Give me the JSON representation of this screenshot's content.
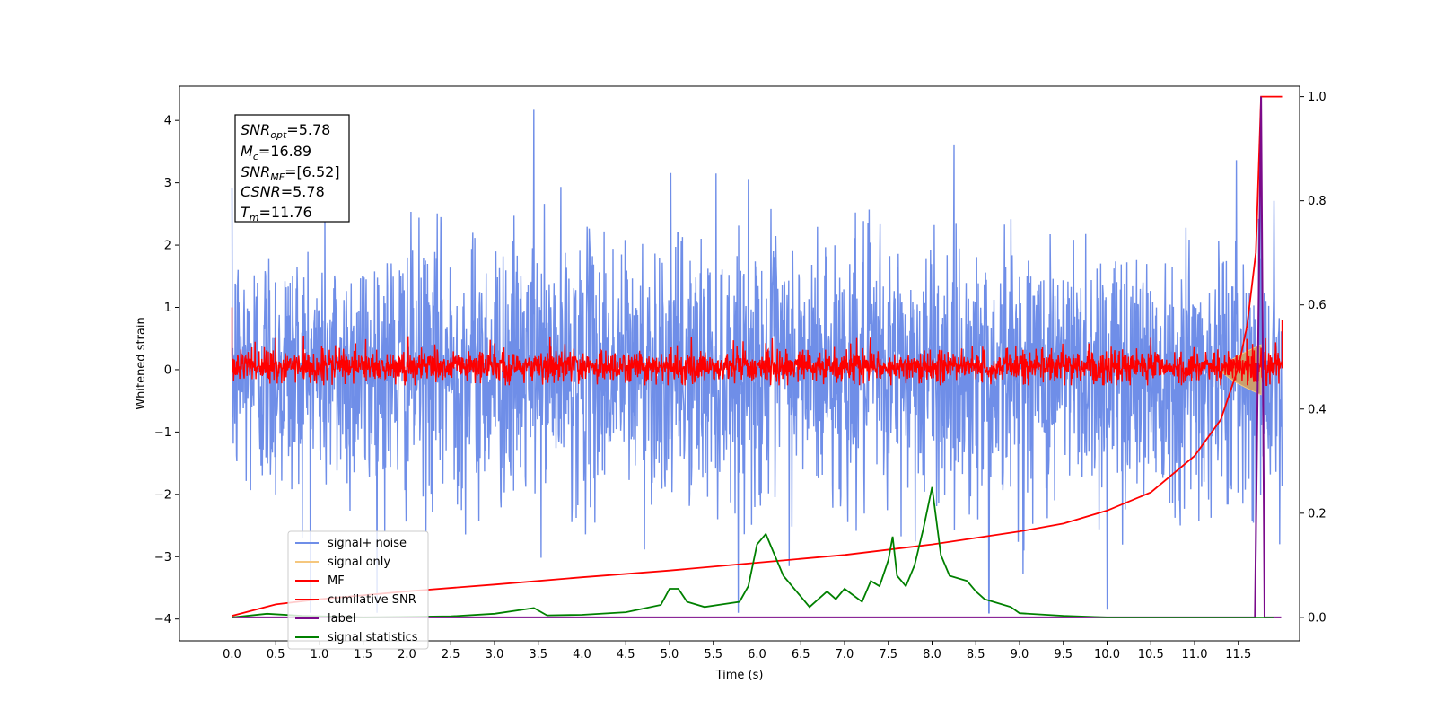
{
  "chart_data": {
    "type": "line",
    "xlabel": "Time (s)",
    "ylabel": "Whitened strain",
    "xlim": [
      -0.6,
      12.2
    ],
    "ylim": [
      -4.35,
      4.55
    ],
    "y2lim": [
      -0.045,
      1.02
    ],
    "x_ticks": [
      "0.0",
      "0.5",
      "1.0",
      "1.5",
      "2.0",
      "2.5",
      "3.0",
      "3.5",
      "4.0",
      "4.5",
      "5.0",
      "5.5",
      "6.0",
      "6.5",
      "7.0",
      "7.5",
      "8.0",
      "8.5",
      "9.0",
      "9.5",
      "10.0",
      "10.5",
      "11.0",
      "11.5"
    ],
    "y_ticks": [
      -4,
      -3,
      -2,
      -1,
      0,
      1,
      2,
      3,
      4
    ],
    "y2_ticks": [
      "0.0",
      "0.2",
      "0.4",
      "0.6",
      "0.8",
      "1.0"
    ],
    "colors": {
      "signal_noise": "#6f8ee8",
      "signal_only": "#f5c77e",
      "mf": "#ff0000",
      "cumulative_snr": "#ff0000",
      "label": "#7b0a8a",
      "signal_statistics": "#008000",
      "chirp_fill": "#c9a070"
    },
    "annotation": {
      "snr_opt": "=5.78",
      "mc": "=16.89",
      "snr_mf": "=[6.52]",
      "csnr": "=5.78",
      "tm": "=11.76"
    },
    "legend": {
      "position": "lower-left",
      "entries": [
        "signal+ noise",
        "signal only",
        "MF",
        "cumilative SNR",
        "label",
        "signal statistics"
      ]
    },
    "series": [
      {
        "name": "signal+ noise",
        "axis": "left",
        "style": "noise",
        "x_range": [
          0,
          12
        ],
        "approx_range": [
          -3.9,
          4.2
        ],
        "peak_values": [
          [
            3.45,
            4.17
          ],
          [
            11.76,
            4.17
          ],
          [
            8.65,
            -3.95
          ],
          [
            10.0,
            -3.85
          ]
        ]
      },
      {
        "name": "signal only",
        "axis": "left",
        "style": "chirp",
        "x_range": [
          11.3,
          11.76
        ],
        "approx_amplitude": 0.4
      },
      {
        "name": "MF",
        "axis": "left",
        "style": "noise",
        "x_range": [
          0,
          12
        ],
        "approx_range": [
          -0.25,
          0.55
        ],
        "start_value": 1.0,
        "end_value": 0.8
      },
      {
        "name": "cumilative SNR",
        "axis": "right",
        "x": [
          0.0,
          0.5,
          1.0,
          2.0,
          3.0,
          4.0,
          5.0,
          6.0,
          7.0,
          8.0,
          9.0,
          9.5,
          10.0,
          10.5,
          11.0,
          11.3,
          11.5,
          11.6,
          11.7,
          11.76,
          12.0
        ],
        "values": [
          0.003,
          0.025,
          0.035,
          0.05,
          0.063,
          0.077,
          0.09,
          0.105,
          0.12,
          0.14,
          0.165,
          0.18,
          0.205,
          0.24,
          0.31,
          0.38,
          0.48,
          0.56,
          0.7,
          1.0,
          1.0
        ]
      },
      {
        "name": "label",
        "axis": "right",
        "x": [
          0.0,
          11.68,
          11.69,
          11.76,
          11.8,
          11.81,
          11.99
        ],
        "values": [
          0.0,
          0.0,
          0.0,
          1.0,
          0.0,
          0.0,
          0.0
        ]
      },
      {
        "name": "signal statistics",
        "axis": "right",
        "x": [
          0.0,
          0.4,
          0.8,
          1.5,
          2.5,
          3.0,
          3.45,
          3.6,
          4.0,
          4.5,
          4.9,
          5.0,
          5.1,
          5.2,
          5.4,
          5.6,
          5.8,
          5.9,
          6.0,
          6.1,
          6.3,
          6.5,
          6.6,
          6.8,
          6.9,
          7.0,
          7.2,
          7.3,
          7.4,
          7.5,
          7.55,
          7.6,
          7.7,
          7.8,
          7.9,
          8.0,
          8.1,
          8.2,
          8.4,
          8.5,
          8.6,
          8.7,
          8.9,
          9.0,
          9.5,
          10.0,
          11.0,
          11.9
        ],
        "values": [
          0.0,
          0.007,
          0.003,
          0.0,
          0.002,
          0.007,
          0.018,
          0.004,
          0.005,
          0.01,
          0.024,
          0.055,
          0.055,
          0.03,
          0.02,
          0.025,
          0.03,
          0.06,
          0.14,
          0.16,
          0.08,
          0.04,
          0.02,
          0.05,
          0.035,
          0.055,
          0.03,
          0.07,
          0.06,
          0.11,
          0.155,
          0.08,
          0.06,
          0.1,
          0.17,
          0.25,
          0.12,
          0.08,
          0.07,
          0.05,
          0.035,
          0.03,
          0.02,
          0.008,
          0.003,
          0.0,
          0.0,
          0.0
        ]
      }
    ]
  }
}
